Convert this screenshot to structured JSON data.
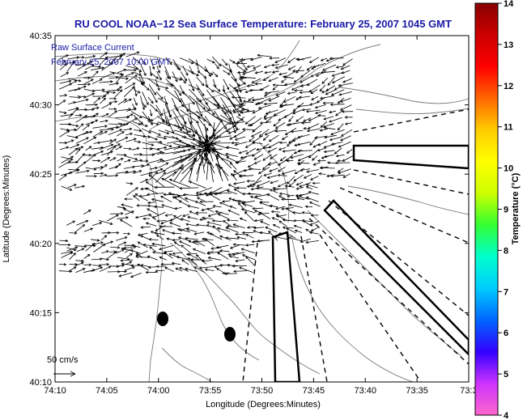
{
  "title": "RU COOL  NOAA−12  Sea Surface Temperature:  February 25, 2007 1045 GMT",
  "overlay": {
    "line1": "Raw Surface Current",
    "line2": "February 25, 2007 10:00 GMT"
  },
  "scale_label": "50 cm/s",
  "map": {
    "xlabel": "Longitude (Degrees:Minutes)",
    "ylabel": "Latitude (Degrees:Minutes)",
    "x_ticks": [
      "74:10",
      "74:05",
      "74:00",
      "73:55",
      "73:50",
      "73:45",
      "73:40",
      "73:35",
      "73:3"
    ],
    "y_ticks": [
      "40:35",
      "40:30",
      "40:25",
      "40:20",
      "40:15",
      "40:10"
    ]
  },
  "colorbar": {
    "label": "Temperature (°C)",
    "ticks": [
      "14",
      "13",
      "12",
      "11",
      "10",
      "9",
      "8",
      "7",
      "6",
      "5",
      "4"
    ],
    "range": [
      4,
      14
    ],
    "colors": [
      "#ff66cc",
      "#cc33ff",
      "#3300ff",
      "#0066ff",
      "#00ccff",
      "#00ffcc",
      "#33ff33",
      "#ccff00",
      "#ffff00",
      "#ffcc00",
      "#ff6600",
      "#ff0000",
      "#cc0000",
      "#880000"
    ]
  },
  "colors": {
    "title": "#1a1aa8",
    "land_outline": "#7a7a7a",
    "vectors": "#000000"
  }
}
